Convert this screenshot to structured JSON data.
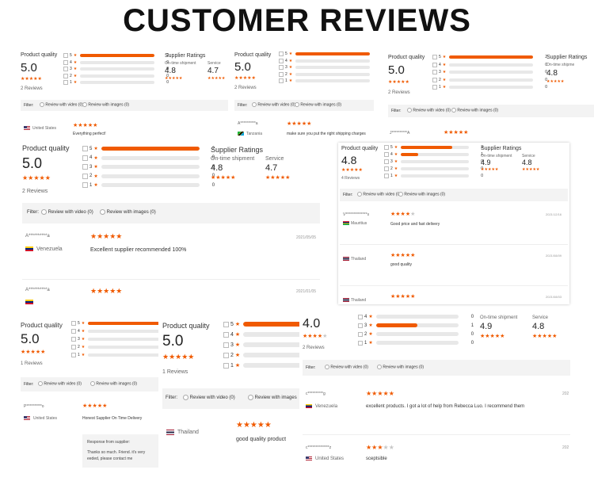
{
  "page_title": "CUSTOMER REVIEWS",
  "labels": {
    "product_quality": "Product quality",
    "supplier_ratings": "Supplier Ratings",
    "on_time": "On-time shipment",
    "service": "Service",
    "service_trunc": "Service",
    "on_time_trunc": "On-time shipme",
    "filter": "Filter:",
    "review_video": "Review with video (0)",
    "review_images": "Review with images (0)",
    "review_images_trunc": "Review with images",
    "response_from_supplier": "Response from supplier:"
  },
  "panels": {
    "p1": {
      "score": "5.0",
      "reviews": "2 Reviews",
      "dist": [
        {
          "n": "5",
          "c": "2",
          "frac": 1
        },
        {
          "n": "4",
          "c": "0",
          "frac": 0
        },
        {
          "n": "3",
          "c": "0",
          "frac": 0
        },
        {
          "n": "2",
          "c": "0",
          "frac": 0
        },
        {
          "n": "1",
          "c": "0",
          "frac": 0
        }
      ],
      "on_time": "4.8",
      "service": "4.7",
      "country": "United States",
      "review_text": "Everything perfect!"
    },
    "p2": {
      "score": "5.0",
      "reviews": "2 Reviews",
      "dist": [
        {
          "n": "5",
          "c": "2",
          "frac": 1
        },
        {
          "n": "4",
          "c": "0",
          "frac": 0
        },
        {
          "n": "3",
          "c": "0",
          "frac": 0
        },
        {
          "n": "2",
          "c": "0",
          "frac": 0
        },
        {
          "n": "1",
          "c": "0",
          "frac": 0
        }
      ],
      "user": "A**********a",
      "country": "Tanzania",
      "review_text": "make sure you put the right shipping charges"
    },
    "p3": {
      "score": "5.0",
      "reviews": "2 Reviews",
      "dist": [
        {
          "n": "5",
          "c": "2",
          "frac": 1
        },
        {
          "n": "4",
          "c": "0",
          "frac": 0
        },
        {
          "n": "3",
          "c": "0",
          "frac": 0
        },
        {
          "n": "2",
          "c": "0",
          "frac": 0
        },
        {
          "n": "1",
          "c": "0",
          "frac": 0
        }
      ],
      "on_time": "4.8",
      "user": "J**********A"
    },
    "p4": {
      "score": "5.0",
      "reviews": "2 Reviews",
      "dist": [
        {
          "n": "5",
          "c": "2",
          "frac": 1
        },
        {
          "n": "4",
          "c": "0",
          "frac": 0
        },
        {
          "n": "3",
          "c": "0",
          "frac": 0
        },
        {
          "n": "2",
          "c": "0",
          "frac": 0
        },
        {
          "n": "1",
          "c": "0",
          "frac": 0
        }
      ],
      "on_time": "4.8",
      "service": "4.7",
      "r1_user": "A**********a",
      "r1_date": "2021/05/05",
      "r1_country": "Venezuela",
      "r1_text": "Excellent supplier recommended 100%",
      "r2_user": "A**********a",
      "r2_date": "2021/01/05"
    },
    "p5": {
      "score": "4.8",
      "reviews": "4 Reviews",
      "dist": [
        {
          "n": "5",
          "c": "3",
          "frac": 0.75
        },
        {
          "n": "4",
          "c": "1",
          "frac": 0.25
        },
        {
          "n": "3",
          "c": "0",
          "frac": 0
        },
        {
          "n": "2",
          "c": "0",
          "frac": 0
        },
        {
          "n": "1",
          "c": "0",
          "frac": 0
        }
      ],
      "on_time": "4.9",
      "service": "4.8",
      "r1_user": "V**************s",
      "r1_date": "2021/12/16",
      "r1_country": "Mauritius",
      "r1_text": "Good price and fast delivery",
      "r2_date": "2021/08/09",
      "r2_country": "Thailand",
      "r2_text": "good quality",
      "r3_date": "2021/08/03",
      "r3_country": "Thailand"
    },
    "p6": {
      "score": "5.0",
      "reviews": "1 Reviews",
      "dist": [
        {
          "n": "5",
          "c": "",
          "frac": 1
        },
        {
          "n": "4",
          "c": "",
          "frac": 0
        },
        {
          "n": "3",
          "c": "",
          "frac": 0
        },
        {
          "n": "2",
          "c": "",
          "frac": 0
        },
        {
          "n": "1",
          "c": "",
          "frac": 0
        }
      ],
      "user": "P**********o",
      "country": "United States",
      "review_text": "Honest Supplier On Time Delivery",
      "reply_line1": "Thanks so much. Friend. it's very",
      "reply_line2": "eeded, please contact me"
    },
    "p7": {
      "score": "5.0",
      "reviews": "1 Reviews",
      "dist": [
        {
          "n": "5",
          "frac": 1
        },
        {
          "n": "4",
          "frac": 0
        },
        {
          "n": "3",
          "frac": 0
        },
        {
          "n": "2",
          "frac": 0
        },
        {
          "n": "1",
          "frac": 0
        }
      ],
      "country": "Thailand",
      "review_text": "good quality product"
    },
    "p8": {
      "score": "4.0",
      "reviews": "2 Reviews",
      "dist": [
        {
          "n": "4",
          "c": "0",
          "frac": 0
        },
        {
          "n": "3",
          "c": "1",
          "frac": 0.5
        },
        {
          "n": "2",
          "c": "0",
          "frac": 0
        },
        {
          "n": "1",
          "c": "0",
          "frac": 0
        }
      ],
      "on_time": "4.9",
      "service": "4.8",
      "r1_user": "c**********g",
      "r1_date": "202",
      "r1_country": "Venezuela",
      "r1_text": "excellent products. I got a lot of help from Rebecca Luo. I recommend them",
      "r2_user": "c**************z",
      "r2_date": "202",
      "r2_country": "United States",
      "r2_text": "sceptsible"
    }
  },
  "colors": {
    "accent": "#f05a00",
    "bar_bg": "#e8e8e8",
    "filter_bg": "#f3f3f3"
  }
}
